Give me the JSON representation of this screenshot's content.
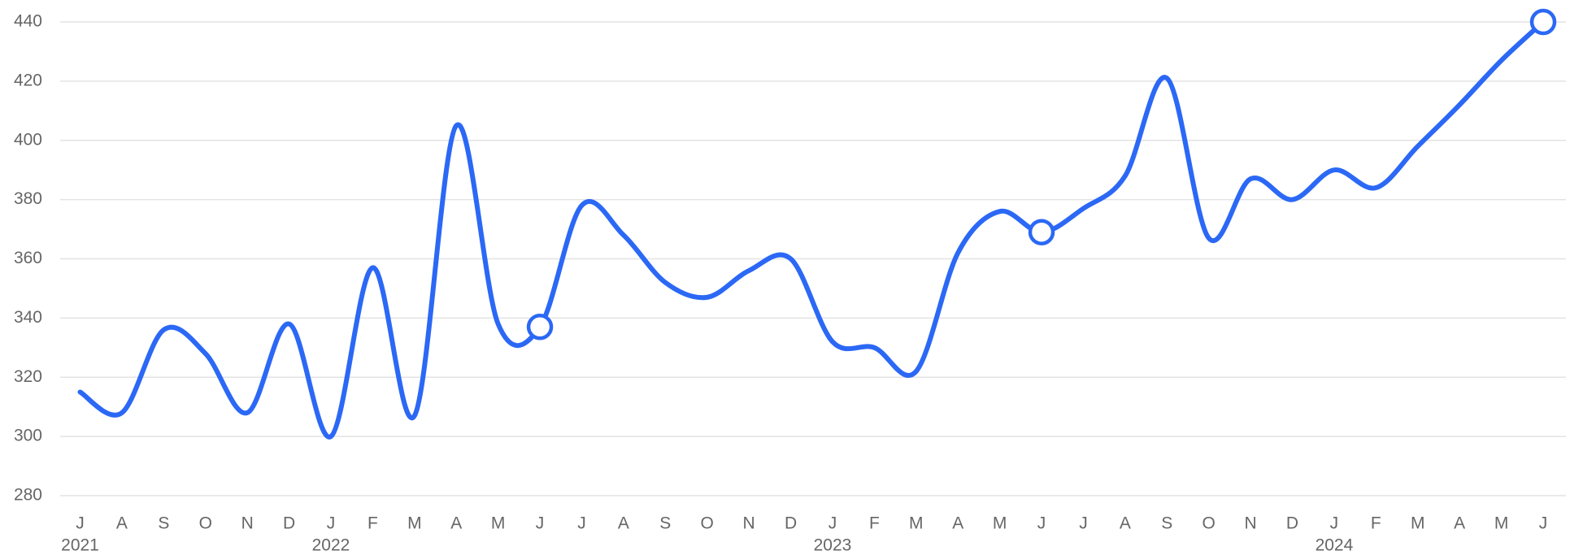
{
  "chart_data": {
    "type": "line",
    "categories": [
      "J",
      "A",
      "S",
      "O",
      "N",
      "D",
      "J",
      "F",
      "M",
      "A",
      "M",
      "J",
      "J",
      "A",
      "S",
      "O",
      "N",
      "D",
      "J",
      "F",
      "M",
      "A",
      "M",
      "J",
      "J",
      "A",
      "S",
      "O",
      "N",
      "D",
      "J",
      "F",
      "M",
      "A",
      "M",
      "J"
    ],
    "year_labels": [
      {
        "index": 0,
        "label": "2021"
      },
      {
        "index": 6,
        "label": "2022"
      },
      {
        "index": 18,
        "label": "2023"
      },
      {
        "index": 30,
        "label": "2024"
      }
    ],
    "series": [
      {
        "color": "#2b68f5",
        "values": [
          315,
          308,
          336,
          328,
          308,
          338,
          300,
          357,
          307,
          405,
          338,
          337,
          378,
          368,
          352,
          347,
          356,
          360,
          332,
          330,
          322,
          362,
          376,
          369,
          377,
          388,
          421,
          367,
          387,
          380,
          390,
          384,
          398,
          412,
          427,
          440
        ],
        "markers": [
          11,
          23,
          35
        ]
      }
    ],
    "ylim": [
      280,
      440
    ],
    "yticks": [
      280,
      300,
      320,
      340,
      360,
      380,
      400,
      420,
      440
    ],
    "grid": true
  }
}
